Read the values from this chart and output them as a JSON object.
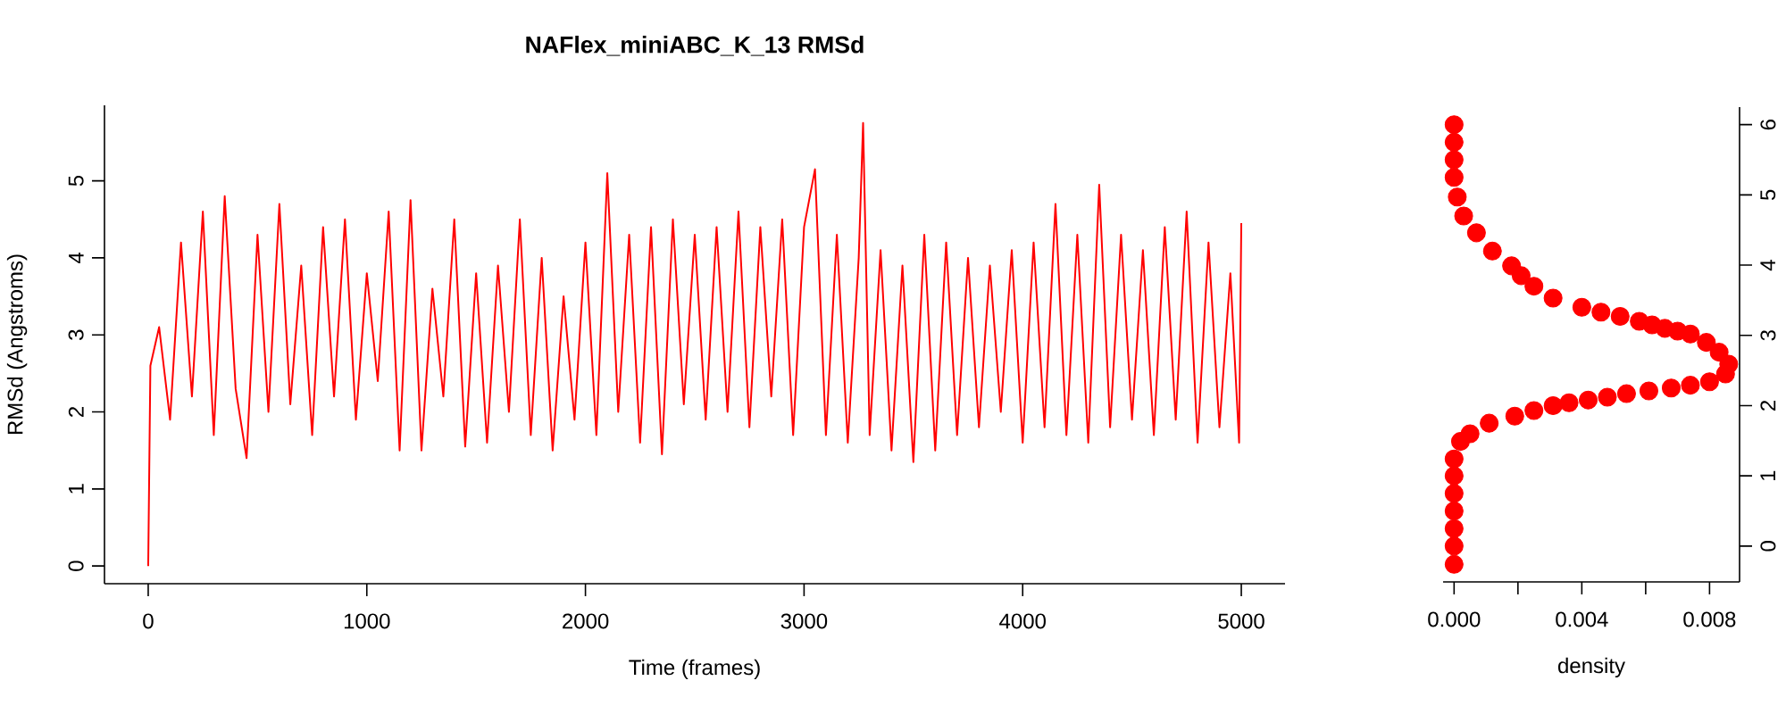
{
  "chart_data": [
    {
      "type": "line",
      "title": "NAFlex_miniABC_K_13 RMSd",
      "xlabel": "Time (frames)",
      "ylabel": "RMSd (Angstroms)",
      "xlim": [
        -200,
        5200
      ],
      "ylim": [
        -0.23,
        5.98
      ],
      "xticks": [
        0,
        1000,
        2000,
        3000,
        4000,
        5000
      ],
      "yticks": [
        0,
        1,
        2,
        3,
        4,
        5
      ],
      "series": [
        {
          "color": "#ff0000",
          "x": [
            0,
            10,
            50,
            100,
            150,
            200,
            250,
            300,
            350,
            400,
            450,
            500,
            550,
            600,
            650,
            700,
            750,
            800,
            850,
            900,
            950,
            1000,
            1050,
            1100,
            1150,
            1200,
            1250,
            1300,
            1350,
            1400,
            1450,
            1500,
            1550,
            1600,
            1650,
            1700,
            1750,
            1800,
            1850,
            1900,
            1950,
            2000,
            2050,
            2100,
            2150,
            2200,
            2250,
            2300,
            2350,
            2400,
            2450,
            2500,
            2550,
            2600,
            2650,
            2700,
            2750,
            2800,
            2850,
            2900,
            2950,
            3000,
            3050,
            3100,
            3150,
            3200,
            3250,
            3270,
            3300,
            3350,
            3400,
            3450,
            3500,
            3550,
            3600,
            3650,
            3700,
            3750,
            3800,
            3850,
            3900,
            3950,
            4000,
            4050,
            4100,
            4150,
            4200,
            4250,
            4300,
            4350,
            4400,
            4450,
            4500,
            4550,
            4600,
            4650,
            4700,
            4750,
            4800,
            4850,
            4900,
            4950,
            4990,
            5000
          ],
          "values": [
            0,
            2.6,
            3.1,
            1.9,
            4.2,
            2.2,
            4.6,
            1.7,
            4.8,
            2.3,
            1.4,
            4.3,
            2.0,
            4.7,
            2.1,
            3.9,
            1.7,
            4.4,
            2.2,
            4.5,
            1.9,
            3.8,
            2.4,
            4.6,
            1.5,
            4.75,
            1.5,
            3.6,
            2.2,
            4.5,
            1.55,
            3.8,
            1.6,
            3.9,
            2.0,
            4.5,
            1.7,
            4.0,
            1.5,
            3.5,
            1.9,
            4.2,
            1.7,
            5.1,
            2.0,
            4.3,
            1.6,
            4.4,
            1.45,
            4.5,
            2.1,
            4.3,
            1.9,
            4.4,
            2.0,
            4.6,
            1.8,
            4.4,
            2.2,
            4.5,
            1.7,
            4.4,
            5.15,
            1.7,
            4.3,
            1.6,
            4.0,
            5.75,
            1.7,
            4.1,
            1.5,
            3.9,
            1.35,
            4.3,
            1.5,
            4.2,
            1.7,
            4.0,
            1.8,
            3.9,
            2.0,
            4.1,
            1.6,
            4.2,
            1.8,
            4.7,
            1.7,
            4.3,
            1.6,
            4.95,
            1.8,
            4.3,
            1.9,
            4.1,
            1.7,
            4.4,
            1.9,
            4.6,
            1.6,
            4.2,
            1.8,
            3.8,
            1.6,
            4.45
          ]
        }
      ]
    },
    {
      "type": "scatter",
      "xlabel": "density",
      "xlim": [
        -0.000344,
        0.00894
      ],
      "xticks": [
        {
          "value": 0,
          "label": "0.000"
        },
        {
          "value": 0.002,
          "label": null
        },
        {
          "value": 0.004,
          "label": "0.004"
        },
        {
          "value": 0.006,
          "label": null
        },
        {
          "value": 0.008,
          "label": "0.008"
        }
      ],
      "y2lim": [
        -0.51,
        6.25
      ],
      "y2ticks": [
        0,
        1,
        2,
        3,
        4,
        5,
        6
      ],
      "series": [
        {
          "color": "#ff0000",
          "axis": "y2",
          "x": [
            0,
            0,
            0,
            0,
            0,
            0,
            0,
            0.0002,
            0.0005,
            0.0011,
            0.0019,
            0.0025,
            0.0031,
            0.0036,
            0.0042,
            0.0048,
            0.0054,
            0.0061,
            0.0068,
            0.0074,
            0.008,
            0.0085,
            0.0086,
            0.0083,
            0.0079,
            0.0074,
            0.007,
            0.0066,
            0.0062,
            0.0058,
            0.0052,
            0.0046,
            0.004,
            0.0031,
            0.0025,
            0.0021,
            0.0018,
            0.0012,
            0.0007,
            0.0003,
            0.0001,
            0,
            0,
            0,
            0
          ],
          "values": [
            -0.26,
            0,
            0.25,
            0.5,
            0.75,
            1.0,
            1.24,
            1.49,
            1.6,
            1.75,
            1.85,
            1.93,
            2.0,
            2.04,
            2.08,
            2.12,
            2.17,
            2.21,
            2.25,
            2.29,
            2.34,
            2.45,
            2.59,
            2.76,
            2.9,
            3.02,
            3.06,
            3.1,
            3.15,
            3.2,
            3.27,
            3.33,
            3.4,
            3.53,
            3.7,
            3.85,
            3.99,
            4.2,
            4.46,
            4.7,
            4.97,
            5.25,
            5.5,
            5.75,
            6.0
          ]
        }
      ]
    }
  ]
}
